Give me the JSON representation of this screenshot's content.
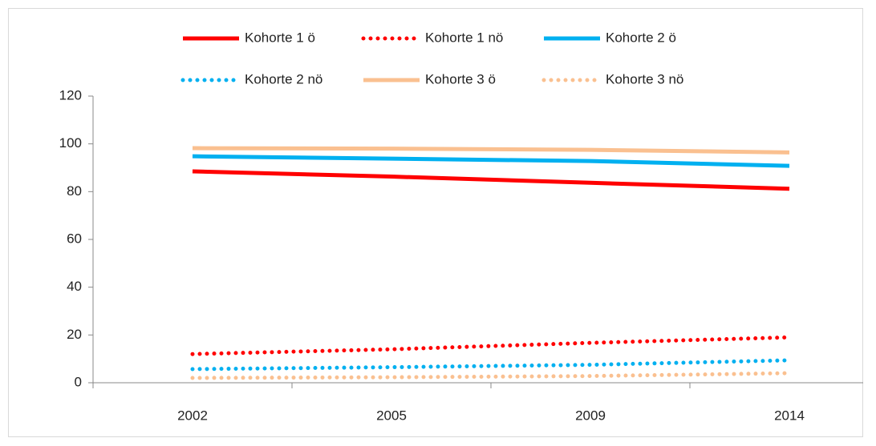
{
  "chart_data": {
    "type": "line",
    "categories": [
      "2002",
      "2005",
      "2009",
      "2014"
    ],
    "series": [
      {
        "name": "Kohorte 1 ö",
        "color": "#ff0000",
        "style": "solid",
        "values": [
          88.5,
          86.3,
          83.7,
          81.2
        ]
      },
      {
        "name": "Kohorte 1 nö",
        "color": "#ff0000",
        "style": "dotted",
        "values": [
          12,
          14,
          16.7,
          19
        ]
      },
      {
        "name": "Kohorte 2 ö",
        "color": "#00b0f0",
        "style": "solid",
        "values": [
          94.8,
          93.8,
          92.8,
          90.8
        ]
      },
      {
        "name": "Kohorte 2 nö",
        "color": "#00b0f0",
        "style": "dotted",
        "values": [
          5.7,
          6.5,
          7.5,
          9.4
        ]
      },
      {
        "name": "Kohorte 3 ö",
        "color": "#fac090",
        "style": "solid",
        "values": [
          98.2,
          98,
          97.5,
          96.4
        ]
      },
      {
        "name": "Kohorte 3 nö",
        "color": "#fac090",
        "style": "dotted",
        "values": [
          2,
          2.3,
          2.8,
          4
        ]
      }
    ],
    "ylim": [
      0,
      120
    ],
    "yticks": [
      0,
      20,
      40,
      60,
      80,
      100,
      120
    ],
    "legend": "top"
  }
}
